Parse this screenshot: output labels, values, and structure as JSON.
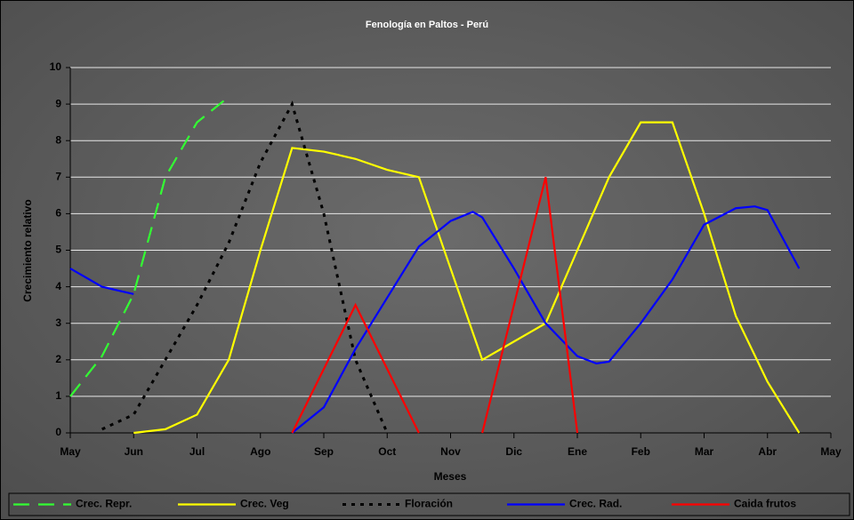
{
  "chart_data": {
    "type": "line",
    "title": "Fenología en Paltos - Perú",
    "x_label": "Meses",
    "y_label": "Crecimiento relativo",
    "xlim": [
      0,
      12
    ],
    "xticks": [
      {
        "value": 0,
        "label": "May"
      },
      {
        "value": 1,
        "label": "Jun"
      },
      {
        "value": 2,
        "label": "Jul"
      },
      {
        "value": 3,
        "label": "Ago"
      },
      {
        "value": 4,
        "label": "Sep"
      },
      {
        "value": 5,
        "label": "Oct"
      },
      {
        "value": 6,
        "label": "Nov"
      },
      {
        "value": 7,
        "label": "Dic"
      },
      {
        "value": 8,
        "label": "Ene"
      },
      {
        "value": 9,
        "label": "Feb"
      },
      {
        "value": 10,
        "label": "Mar"
      },
      {
        "value": 11,
        "label": "Abr"
      },
      {
        "value": 12,
        "label": "May"
      }
    ],
    "ylim": [
      0,
      10
    ],
    "yticks": [
      0,
      1,
      2,
      3,
      4,
      5,
      6,
      7,
      8,
      9,
      10
    ],
    "grid": true,
    "legend": "bottom",
    "series": [
      {
        "name": "Crec. Repr.",
        "color": "#33ff33",
        "line_style": "dashed",
        "x": [
          0,
          0.5,
          1,
          1.5,
          2,
          2.5
        ],
        "values": [
          1,
          2.1,
          3.8,
          7,
          8.5,
          9.2
        ]
      },
      {
        "name": "Crec. Veg",
        "color": "#ffff00",
        "line_style": "solid",
        "x": [
          1,
          1.5,
          2,
          2.5,
          3,
          3.5,
          4,
          4.5,
          5,
          5.5,
          6,
          6.5,
          7,
          7.5,
          8,
          8.5,
          9,
          9.5,
          10,
          10.5,
          11,
          11.5
        ],
        "values": [
          0,
          0.1,
          0.5,
          2,
          5,
          7.8,
          7.7,
          7.5,
          7.2,
          7,
          4.5,
          2,
          2.5,
          3,
          5,
          7,
          8.5,
          8.5,
          6,
          3.2,
          1.4,
          0
        ]
      },
      {
        "name": "Floración",
        "color": "#000000",
        "line_style": "dotted",
        "x": [
          0.5,
          1,
          1.5,
          2,
          2.5,
          3,
          3.5,
          4,
          4.5,
          5
        ],
        "values": [
          0.1,
          0.5,
          2,
          3.5,
          5.2,
          7.4,
          9,
          6,
          2,
          0
        ]
      },
      {
        "name": "Crec. Rad.",
        "color": "#0000ff",
        "line_style": "solid",
        "x": [
          0,
          0.5,
          1,
          2,
          3.5,
          4,
          4.5,
          5,
          5.5,
          6,
          6.35,
          6.5,
          7,
          7.5,
          8,
          8.3,
          8.5,
          9,
          9.5,
          10,
          10.5,
          10.8,
          11,
          11.5
        ],
        "values": [
          4.5,
          4,
          3.8,
          null,
          0,
          0.7,
          2.3,
          3.7,
          5.1,
          5.8,
          6.05,
          5.9,
          4.5,
          3,
          2.1,
          1.9,
          1.95,
          3,
          4.2,
          5.7,
          6.15,
          6.2,
          6.1,
          4.5
        ]
      },
      {
        "name": "Caida frutos",
        "color": "#ff0000",
        "line_style": "solid",
        "x": [
          3.5,
          4.5,
          5.5,
          6,
          6.5,
          7.5,
          8
        ],
        "values": [
          0,
          3.5,
          0,
          null,
          0,
          7,
          0
        ]
      }
    ]
  }
}
